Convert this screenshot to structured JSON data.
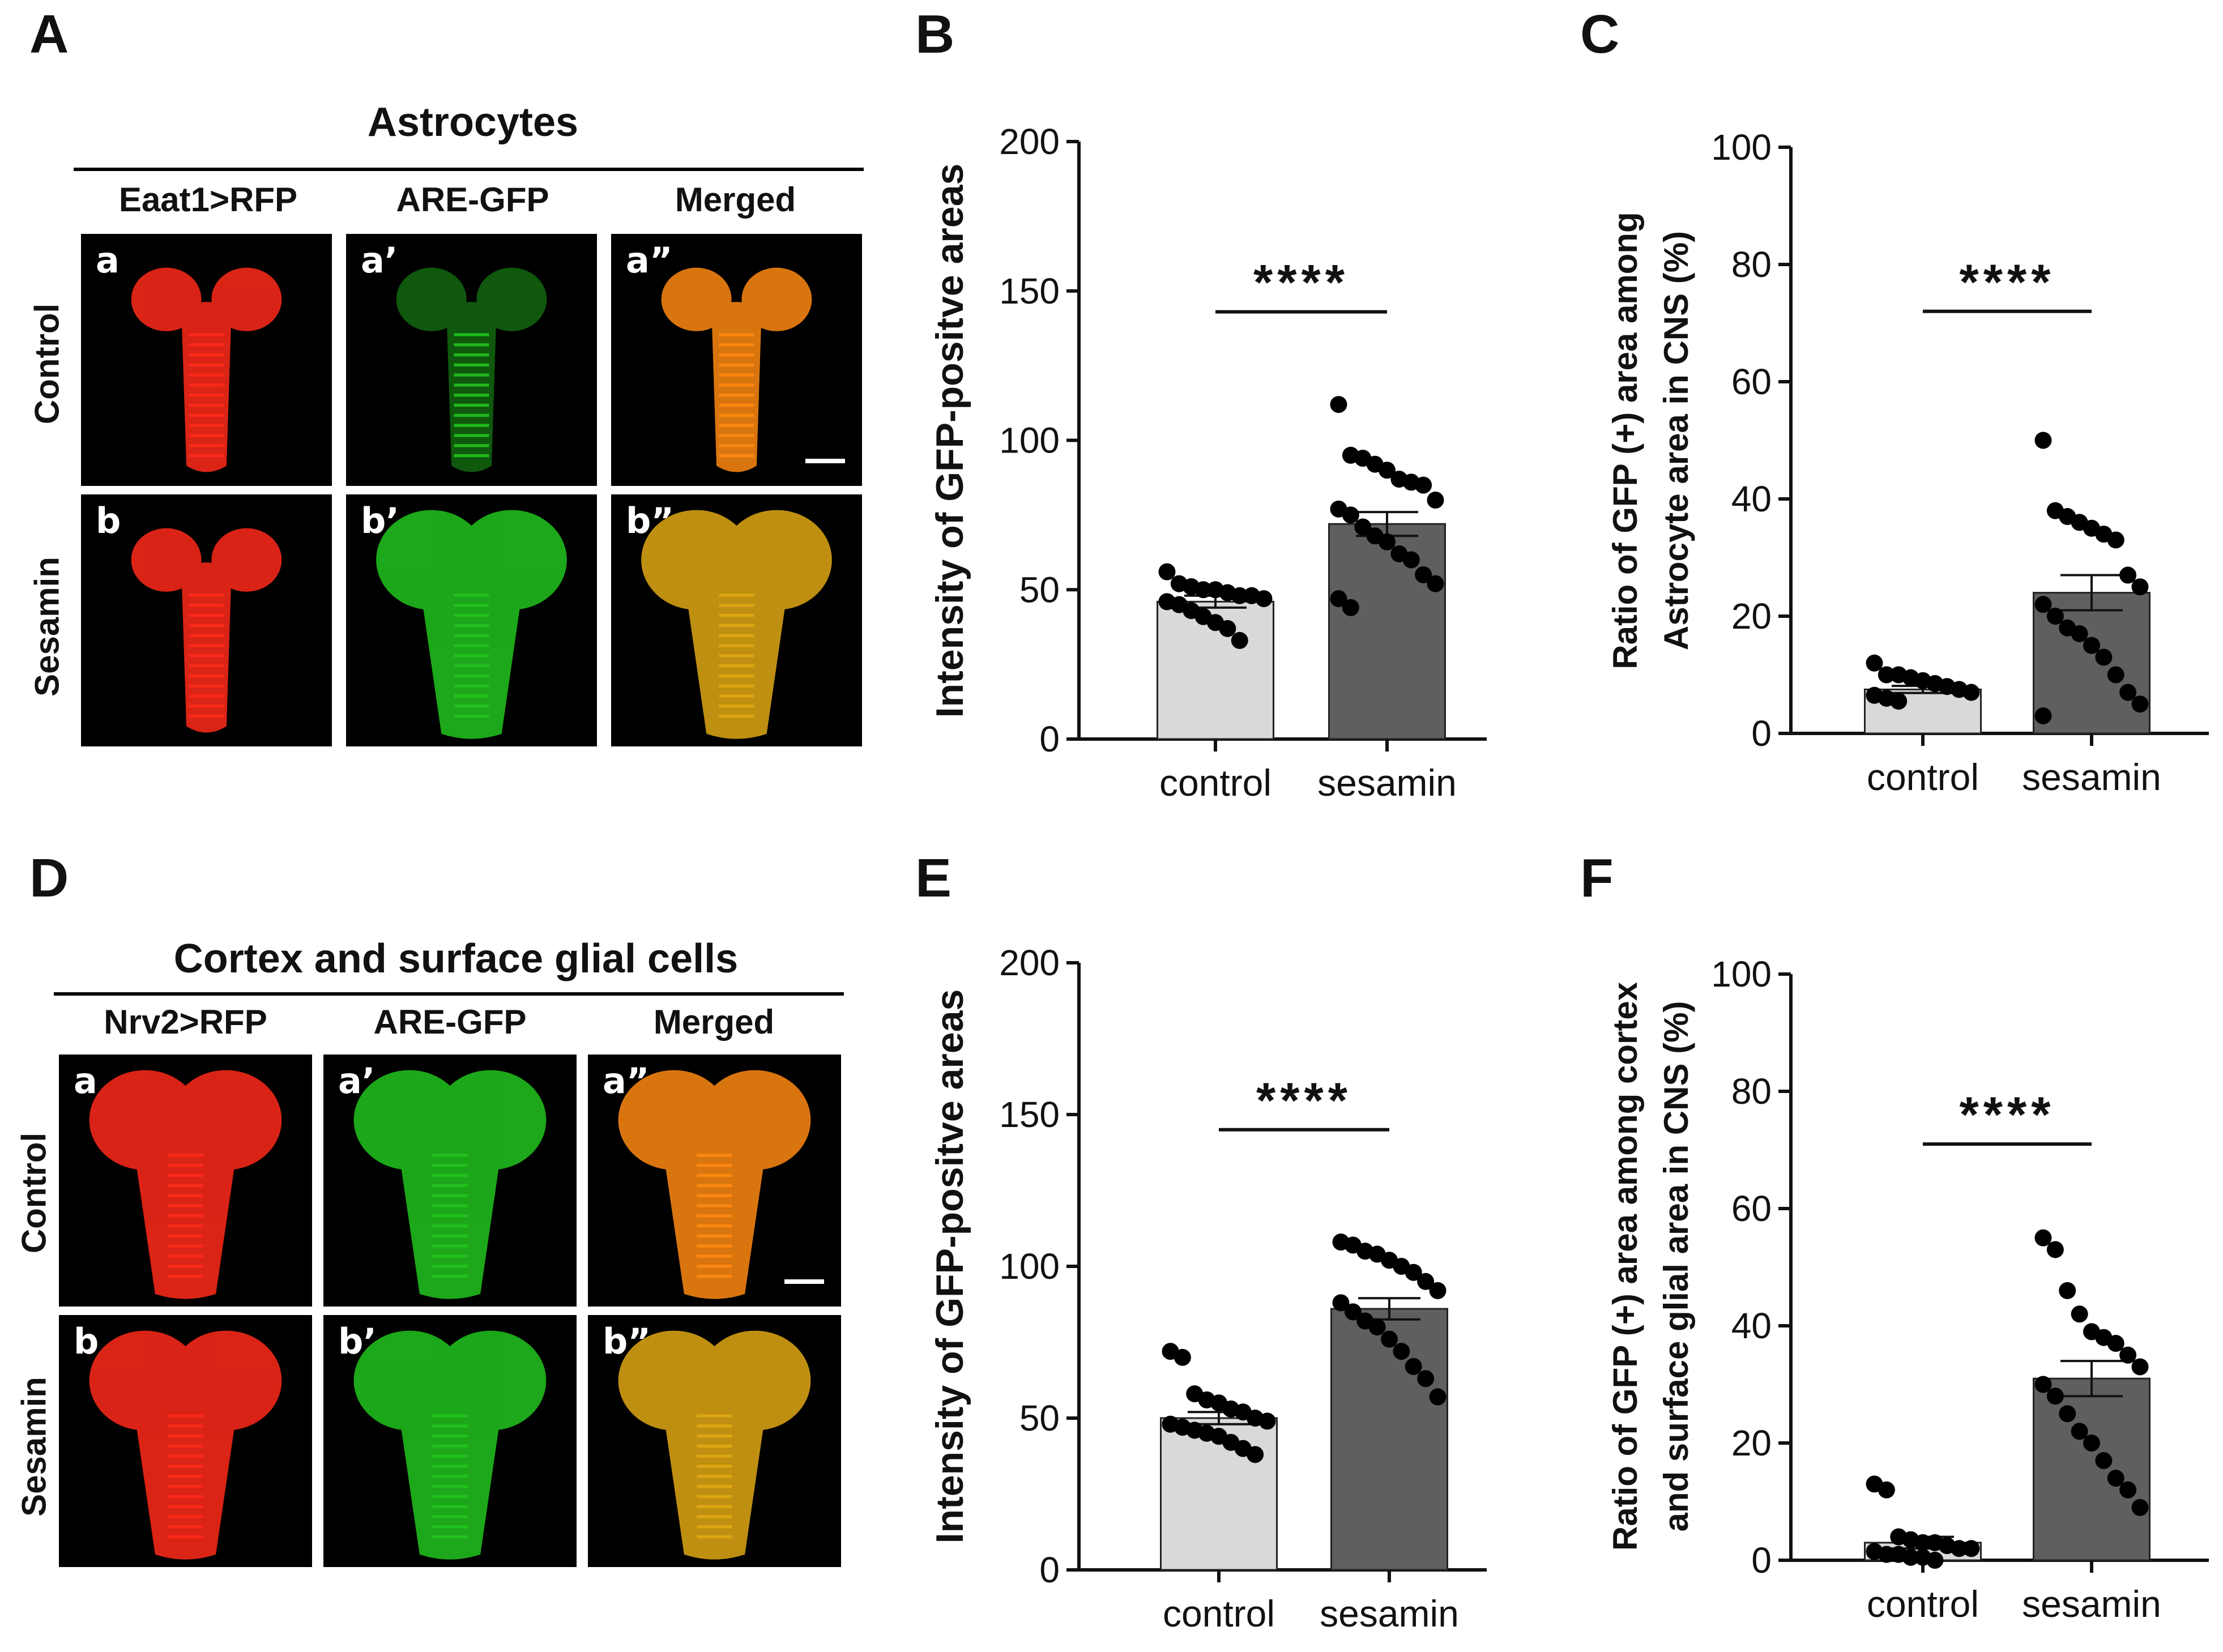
{
  "panels": {
    "A": "A",
    "B": "B",
    "C": "C",
    "D": "D",
    "E": "E",
    "F": "F"
  },
  "groupA": {
    "title": "Astrocytes",
    "columns": [
      "Eaat1>RFP",
      "ARE-GFP",
      "Merged"
    ],
    "rows": [
      "Control",
      "Sesamin"
    ],
    "labels": [
      [
        "a",
        "a’",
        "a”"
      ],
      [
        "b",
        "b’",
        "b”"
      ]
    ]
  },
  "groupD": {
    "title": "Cortex and surface glial cells",
    "columns": [
      "Nrv2>RFP",
      "ARE-GFP",
      "Merged"
    ],
    "rows": [
      "Control",
      "Sesamin"
    ],
    "labels": [
      [
        "a",
        "a’",
        "a”"
      ],
      [
        "b",
        "b’",
        "b”"
      ]
    ]
  },
  "colors": {
    "control_bar": "#d9d9d9",
    "sesamin_bar": "#5f5f5f",
    "rfp": "#ff2a1a",
    "gfp": "#22c41e",
    "merged": "#ff8a12"
  },
  "chart_data": [
    {
      "id": "B",
      "type": "bar",
      "ylabel": "Intensity of GFP-positve areas",
      "categories": [
        "control",
        "sesamin"
      ],
      "values": [
        46,
        72
      ],
      "sem": [
        2,
        4
      ],
      "ylim": [
        0,
        200
      ],
      "yticks": [
        0,
        50,
        100,
        150,
        200
      ],
      "significance": "****",
      "points": [
        [
          56,
          52,
          51,
          50,
          50,
          49,
          48,
          48,
          47,
          46,
          45,
          43,
          41,
          39,
          37,
          33
        ],
        [
          112,
          95,
          94,
          92,
          90,
          87,
          86,
          85,
          80,
          77,
          75,
          71,
          68,
          66,
          62,
          60,
          55,
          52,
          47,
          44
        ]
      ]
    },
    {
      "id": "C",
      "type": "bar",
      "ylabel": "Ratio of GFP (+) area among Astrocyte area in CNS (%)",
      "ylabel_lines": [
        "Ratio of GFP (+) area among",
        "Astrocyte area in CNS (%)"
      ],
      "categories": [
        "control",
        "sesamin"
      ],
      "values": [
        7.5,
        24
      ],
      "sem": [
        0.6,
        3
      ],
      "ylim": [
        0,
        100
      ],
      "yticks": [
        0,
        20,
        40,
        60,
        80,
        100
      ],
      "significance": "****",
      "points": [
        [
          12,
          10,
          10,
          9.5,
          9,
          8.5,
          8,
          7.5,
          7,
          6.5,
          6,
          5.5
        ],
        [
          50,
          38,
          37,
          36,
          35,
          34,
          33,
          27,
          25,
          22,
          20,
          18,
          17,
          15,
          13,
          10,
          7,
          5,
          3
        ]
      ]
    },
    {
      "id": "E",
      "type": "bar",
      "ylabel": "Intensity of GFP-positve areas",
      "categories": [
        "control",
        "sesamin"
      ],
      "values": [
        50,
        86
      ],
      "sem": [
        2,
        3.5
      ],
      "ylim": [
        0,
        200
      ],
      "yticks": [
        0,
        50,
        100,
        150,
        200
      ],
      "significance": "****",
      "points": [
        [
          72,
          70,
          58,
          56,
          55,
          53,
          52,
          50,
          49,
          48,
          47,
          46,
          45,
          44,
          42,
          40,
          38
        ],
        [
          108,
          107,
          105,
          104,
          102,
          100,
          98,
          95,
          92,
          88,
          85,
          82,
          80,
          76,
          72,
          67,
          63,
          57
        ]
      ]
    },
    {
      "id": "F",
      "type": "bar",
      "ylabel": "Ratio of GFP (+) area among cortex and surface glial area in CNS (%)",
      "ylabel_lines": [
        "Ratio of GFP (+) area among cortex",
        "and surface glial area in CNS (%)"
      ],
      "categories": [
        "control",
        "sesamin"
      ],
      "values": [
        3,
        31
      ],
      "sem": [
        1,
        3
      ],
      "ylim": [
        0,
        100
      ],
      "yticks": [
        0,
        20,
        40,
        60,
        80,
        100
      ],
      "significance": "****",
      "points": [
        [
          13,
          12,
          4,
          3.5,
          3,
          3,
          2.5,
          2,
          2,
          1.5,
          1,
          1,
          0.5,
          0.5,
          0
        ],
        [
          55,
          53,
          46,
          42,
          39,
          38,
          37,
          35,
          33,
          30,
          28,
          25,
          22,
          20,
          17,
          14,
          12,
          9
        ]
      ]
    }
  ]
}
